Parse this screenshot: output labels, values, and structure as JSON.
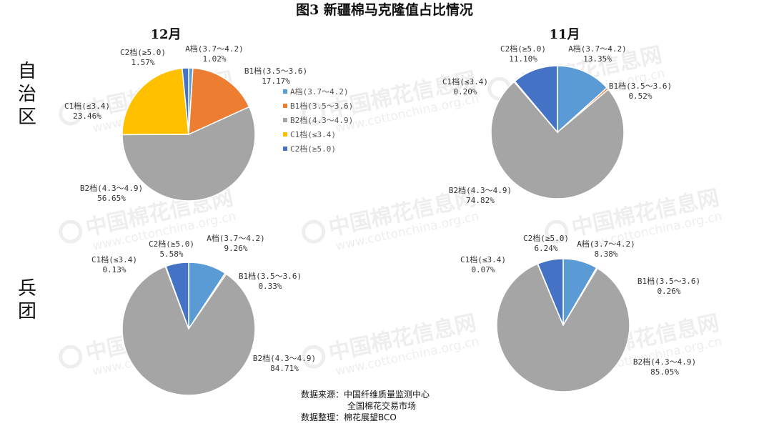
{
  "title": "图3  新疆棉马克隆值占比情况",
  "periods": [
    "12月",
    "11月"
  ],
  "row_labels": [
    "自治区",
    "兵团"
  ],
  "colors": {
    "A": "#5b9bd5",
    "B1": "#ed7d31",
    "B2": "#a5a5a5",
    "C1": "#ffc000",
    "C2": "#4472c4"
  },
  "legend": [
    {
      "key": "A",
      "label": "A档(3.7～4.2)"
    },
    {
      "key": "B1",
      "label": "B1档(3.5～3.6)"
    },
    {
      "key": "B2",
      "label": "B2档(4.3～4.9)"
    },
    {
      "key": "C1",
      "label": "C1档(≤3.4)"
    },
    {
      "key": "C2",
      "label": "C2档(≥5.0)"
    }
  ],
  "watermark": {
    "brand": "中国棉花信息网",
    "url": "www.cottonchina.org.cn"
  },
  "source": {
    "line1": "数据来源：中国纤维质量监测中心",
    "line2": "全国棉花交易市场",
    "line3": "数据整理：棉花展望BCO"
  },
  "chart_data": [
    {
      "type": "pie",
      "region": "自治区",
      "period": "12月",
      "categories": [
        "A档(3.7～4.2)",
        "B1档(3.5～3.6)",
        "B2档(4.3～4.9)",
        "C1档(≤3.4)",
        "C2档(≥5.0)"
      ],
      "keys": [
        "A",
        "B1",
        "B2",
        "C1",
        "C2"
      ],
      "values": [
        1.02,
        17.17,
        56.65,
        23.46,
        1.57
      ],
      "value_labels": [
        "1.02%",
        "17.17%",
        "56.65%",
        "23.46%",
        "1.57%"
      ],
      "legend": "right"
    },
    {
      "type": "pie",
      "region": "自治区",
      "period": "11月",
      "categories": [
        "A档(3.7～4.2)",
        "B1档(3.5～3.6)",
        "B2档(4.3～4.9)",
        "C1档(≤3.4)",
        "C2档(≥5.0)"
      ],
      "keys": [
        "A",
        "B1",
        "B2",
        "C1",
        "C2"
      ],
      "values": [
        13.35,
        0.52,
        74.82,
        0.2,
        11.1
      ],
      "value_labels": [
        "13.35%",
        "0.52%",
        "74.82%",
        "0.20%",
        "11.10%"
      ]
    },
    {
      "type": "pie",
      "region": "兵团",
      "period": "12月",
      "categories": [
        "A档(3.7～4.2)",
        "B1档(3.5～3.6)",
        "B2档(4.3～4.9)",
        "C1档(≤3.4)",
        "C2档(≥5.0)"
      ],
      "keys": [
        "A",
        "B1",
        "B2",
        "C1",
        "C2"
      ],
      "values": [
        9.26,
        0.33,
        84.71,
        0.13,
        5.58
      ],
      "value_labels": [
        "9.26%",
        "0.33%",
        "84.71%",
        "0.13%",
        "5.58%"
      ]
    },
    {
      "type": "pie",
      "region": "兵团",
      "period": "11月",
      "categories": [
        "A档(3.7～4.2)",
        "B1档(3.5～3.6)",
        "B2档(4.3～4.9)",
        "C1档(≤3.4)",
        "C2档(≥5.0)"
      ],
      "keys": [
        "A",
        "B1",
        "B2",
        "C1",
        "C2"
      ],
      "values": [
        8.38,
        0.26,
        85.05,
        0.07,
        6.24
      ],
      "value_labels": [
        "8.38%",
        "0.26%",
        "85.05%",
        "0.07%",
        "6.24%"
      ]
    }
  ]
}
